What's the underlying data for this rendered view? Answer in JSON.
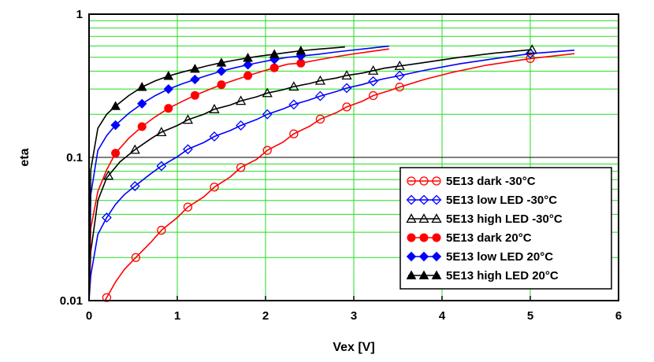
{
  "chart_data": {
    "type": "line",
    "title": "",
    "xlabel": "Vex [V]",
    "ylabel": "eta",
    "xlim": [
      0,
      6
    ],
    "ylim": [
      0.01,
      1
    ],
    "yscale": "log",
    "grid": true,
    "legend_position": "bottom-right",
    "x_ticks": [
      0,
      1,
      2,
      3,
      4,
      5,
      6
    ],
    "x_tick_labels": [
      "0",
      "1",
      "2",
      "3",
      "4",
      "5",
      "6"
    ],
    "y_ticks": [
      0.01,
      0.1,
      1
    ],
    "y_tick_labels": [
      "0.01",
      "0.1",
      "1"
    ],
    "series": [
      {
        "name": "5E13 dark -30°C",
        "color": "#ff0000",
        "marker": "circle-open",
        "x": [
          0.18,
          0.2,
          0.3,
          0.4,
          0.53,
          0.7,
          0.82,
          1.0,
          1.12,
          1.3,
          1.42,
          1.6,
          1.72,
          1.9,
          2.02,
          2.2,
          2.32,
          2.5,
          2.62,
          2.8,
          2.92,
          3.1,
          3.22,
          3.4,
          3.52,
          3.8,
          4.1,
          4.5,
          5.0,
          5.5
        ],
        "y": [
          0.0098,
          0.0105,
          0.0135,
          0.0165,
          0.02,
          0.0255,
          0.031,
          0.038,
          0.045,
          0.053,
          0.062,
          0.073,
          0.085,
          0.097,
          0.112,
          0.128,
          0.146,
          0.165,
          0.185,
          0.205,
          0.225,
          0.247,
          0.27,
          0.292,
          0.31,
          0.35,
          0.39,
          0.44,
          0.49,
          0.53
        ],
        "marker_x": [
          0.2,
          0.53,
          0.82,
          1.12,
          1.42,
          1.72,
          2.02,
          2.32,
          2.62,
          2.92,
          3.22,
          3.52,
          5.0
        ]
      },
      {
        "name": "5E13 low LED -30°C",
        "color": "#0000ff",
        "marker": "diamond-open",
        "x": [
          0.0,
          0.02,
          0.1,
          0.2,
          0.3,
          0.4,
          0.52,
          0.7,
          0.82,
          1.0,
          1.12,
          1.3,
          1.42,
          1.6,
          1.72,
          1.9,
          2.02,
          2.2,
          2.32,
          2.5,
          2.62,
          2.8,
          2.92,
          3.1,
          3.22,
          3.35,
          3.5,
          3.8,
          4.2,
          4.6,
          5.0,
          5.5
        ],
        "y": [
          0.0098,
          0.015,
          0.029,
          0.038,
          0.047,
          0.055,
          0.063,
          0.077,
          0.087,
          0.101,
          0.114,
          0.127,
          0.14,
          0.154,
          0.167,
          0.184,
          0.2,
          0.218,
          0.234,
          0.252,
          0.268,
          0.288,
          0.305,
          0.323,
          0.34,
          0.355,
          0.37,
          0.405,
          0.45,
          0.49,
          0.53,
          0.56
        ],
        "marker_x": [
          0.2,
          0.52,
          0.82,
          1.12,
          1.42,
          1.72,
          2.02,
          2.32,
          2.62,
          2.92,
          3.22,
          3.52,
          5.0
        ]
      },
      {
        "name": "5E13 high LED -30°C",
        "color": "#000000",
        "marker": "triangle-open",
        "x": [
          0.0,
          0.02,
          0.1,
          0.2,
          0.35,
          0.52,
          0.7,
          0.82,
          1.0,
          1.12,
          1.3,
          1.42,
          1.6,
          1.72,
          1.9,
          2.02,
          2.2,
          2.32,
          2.5,
          2.62,
          2.8,
          2.92,
          3.1,
          3.22,
          3.35,
          3.5,
          3.8,
          4.2,
          4.6,
          5.02
        ],
        "y": [
          0.0098,
          0.022,
          0.05,
          0.072,
          0.093,
          0.113,
          0.135,
          0.15,
          0.167,
          0.183,
          0.2,
          0.217,
          0.232,
          0.248,
          0.265,
          0.281,
          0.297,
          0.312,
          0.328,
          0.343,
          0.358,
          0.373,
          0.388,
          0.403,
          0.42,
          0.433,
          0.46,
          0.5,
          0.535,
          0.565
        ],
        "marker_x": [
          0.22,
          0.52,
          0.82,
          1.12,
          1.42,
          1.72,
          2.02,
          2.32,
          2.62,
          2.92,
          3.22,
          3.52,
          5.02
        ]
      },
      {
        "name": "5E13 dark 20°C",
        "color": "#ff0000",
        "marker": "circle-filled",
        "x": [
          0.0,
          0.02,
          0.1,
          0.2,
          0.3,
          0.45,
          0.6,
          0.75,
          0.9,
          1.05,
          1.2,
          1.35,
          1.5,
          1.65,
          1.8,
          1.95,
          2.1,
          2.25,
          2.4,
          2.6,
          2.8,
          3.0,
          3.2,
          3.4
        ],
        "y": [
          0.0098,
          0.032,
          0.058,
          0.082,
          0.107,
          0.136,
          0.164,
          0.192,
          0.22,
          0.245,
          0.271,
          0.296,
          0.322,
          0.347,
          0.372,
          0.397,
          0.422,
          0.447,
          0.455,
          0.48,
          0.505,
          0.528,
          0.55,
          0.572
        ],
        "marker_x": [
          0.0,
          0.3,
          0.6,
          0.9,
          1.2,
          1.5,
          1.8,
          2.1,
          2.4
        ]
      },
      {
        "name": "5E13 low LED 20°C",
        "color": "#0000ff",
        "marker": "diamond-filled",
        "x": [
          0.0,
          0.02,
          0.1,
          0.2,
          0.3,
          0.45,
          0.6,
          0.75,
          0.9,
          1.05,
          1.2,
          1.35,
          1.5,
          1.65,
          1.8,
          1.95,
          2.1,
          2.25,
          2.4,
          2.6,
          2.8,
          3.0,
          3.2,
          3.4
        ],
        "y": [
          0.0098,
          0.055,
          0.112,
          0.142,
          0.168,
          0.203,
          0.237,
          0.27,
          0.3,
          0.325,
          0.35,
          0.375,
          0.4,
          0.422,
          0.443,
          0.463,
          0.482,
          0.5,
          0.51,
          0.525,
          0.545,
          0.562,
          0.58,
          0.598
        ],
        "marker_x": [
          0.0,
          0.3,
          0.6,
          0.9,
          1.2,
          1.5,
          1.8,
          2.1,
          2.4
        ]
      },
      {
        "name": "5E13 high LED 20°C",
        "color": "#000000",
        "marker": "triangle-filled",
        "x": [
          0.0,
          0.02,
          0.1,
          0.2,
          0.3,
          0.45,
          0.6,
          0.75,
          0.9,
          1.05,
          1.2,
          1.35,
          1.5,
          1.65,
          1.8,
          1.95,
          2.1,
          2.25,
          2.4,
          2.6,
          2.9
        ],
        "y": [
          0.0098,
          0.082,
          0.16,
          0.2,
          0.228,
          0.27,
          0.31,
          0.342,
          0.37,
          0.393,
          0.415,
          0.437,
          0.458,
          0.477,
          0.495,
          0.511,
          0.525,
          0.54,
          0.555,
          0.57,
          0.59
        ],
        "marker_x": [
          0.0,
          0.3,
          0.6,
          0.9,
          1.2,
          1.5,
          1.8,
          2.1,
          2.4
        ]
      }
    ]
  }
}
